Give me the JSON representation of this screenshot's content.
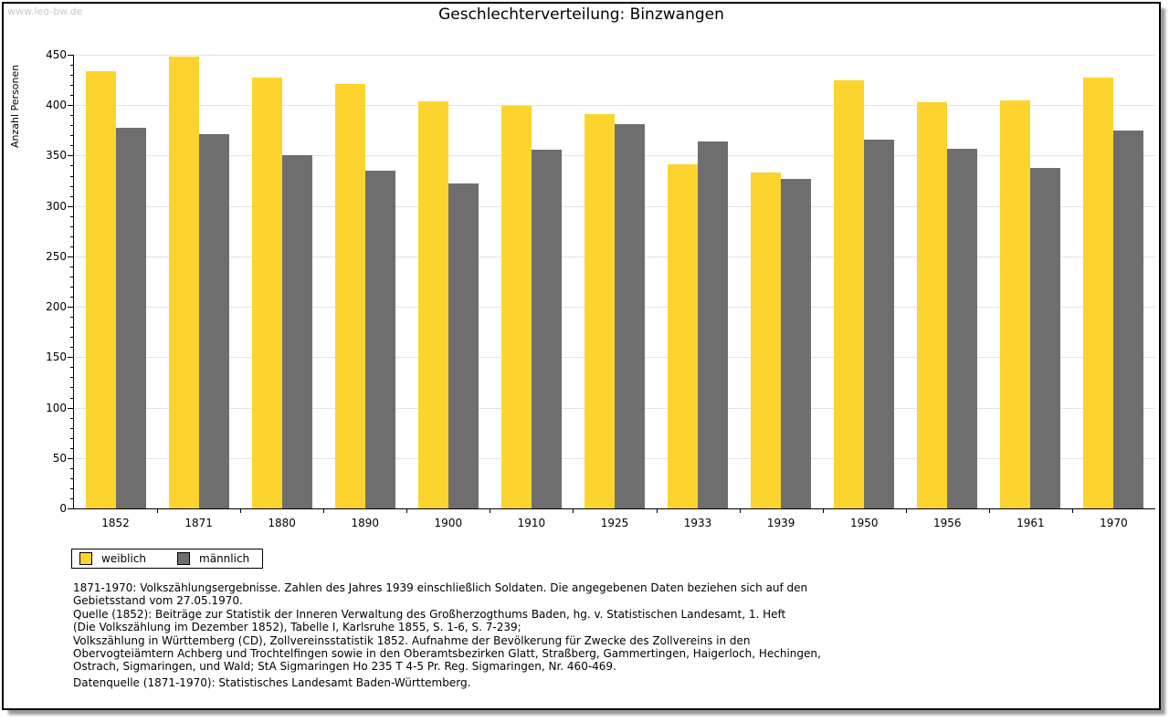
{
  "watermark": "www.leo-bw.de",
  "title": "Geschlechterverteilung: Binzwangen",
  "chart_data": {
    "type": "bar",
    "title": "Geschlechterverteilung: Binzwangen",
    "categories": [
      "1852",
      "1871",
      "1880",
      "1890",
      "1900",
      "1910",
      "1925",
      "1933",
      "1939",
      "1950",
      "1956",
      "1961",
      "1970"
    ],
    "series": [
      {
        "name": "weiblich",
        "color": "#FDD42E",
        "values": [
          434,
          448,
          427,
          421,
          404,
          399,
          391,
          341,
          333,
          425,
          403,
          405,
          427
        ]
      },
      {
        "name": "männlich",
        "color": "#6E6E6E",
        "values": [
          378,
          371,
          350,
          335,
          322,
          356,
          381,
          364,
          327,
          366,
          357,
          338,
          375
        ]
      }
    ],
    "xlabel": "",
    "ylabel": "Anzahl Personen",
    "ylim": [
      0,
      450
    ],
    "ytick_step": 50,
    "yminor_step": 10,
    "grid": true,
    "gridline_color": "#e2e2e2",
    "legend_position": "bottom-left"
  },
  "footnotes": {
    "lines": [
      "1871-1970: Volkszählungsergebnisse. Zahlen des Jahres 1939 einschließlich Soldaten. Die angegebenen Daten beziehen sich auf den",
      "Gebietsstand vom 27.05.1970.",
      "Quelle (1852): Beiträge zur Statistik der Inneren Verwaltung des Großherzogthums Baden, hg. v. Statistischen Landesamt, 1. Heft",
      "(Die Volkszählung im Dezember 1852), Tabelle I, Karlsruhe 1855, S. 1-6, S. 7-239;",
      "Volkszählung in Württemberg (CD), Zollvereinsstatistik 1852. Aufnahme der Bevölkerung für Zwecke des Zollvereins in den",
      "Obervogteiämtern Achberg und Trochtelfingen sowie in den Oberamtsbezirken Glatt, Straßberg, Gammertingen, Haigerloch, Hechingen,",
      "Ostrach, Sigmaringen, und Wald; StA Sigmaringen Ho 235 T 4-5 Pr. Reg. Sigmaringen, Nr. 460-469."
    ],
    "datasource": "Datenquelle (1871-1970): Statistisches Landesamt Baden-Württemberg."
  }
}
